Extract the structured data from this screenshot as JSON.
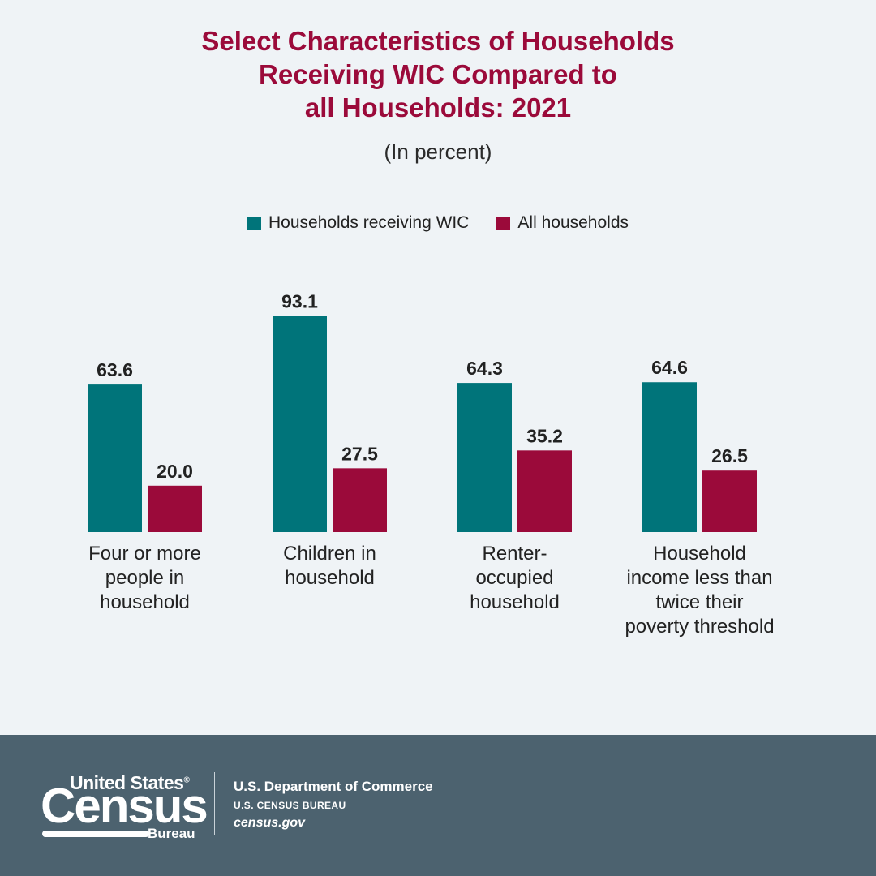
{
  "chart_data": {
    "type": "bar",
    "title_lines": [
      "Select Characteristics of Households",
      "Receiving WIC Compared to",
      "all Households: 2021"
    ],
    "subtitle": "(In percent)",
    "categories": [
      [
        "Four or more",
        "people in",
        "household"
      ],
      [
        "Children in",
        "household"
      ],
      [
        "Renter-",
        "occupied",
        "household"
      ],
      [
        "Household",
        "income less than",
        "twice their",
        "poverty threshold"
      ]
    ],
    "series": [
      {
        "name": "Households receiving WIC",
        "color": "#00747a",
        "values": [
          63.6,
          93.1,
          64.3,
          64.6
        ]
      },
      {
        "name": "All households",
        "color": "#9b0a3a",
        "values": [
          20.0,
          27.5,
          35.2,
          26.5
        ]
      }
    ],
    "ylim": [
      0,
      100
    ],
    "legend_position": "top-center",
    "grid": false
  },
  "footer": {
    "logo_top": "United States",
    "logo_reg": "®",
    "logo_main": "Census",
    "logo_bureau": "Bureau",
    "agency_line1": "U.S. Department of Commerce",
    "agency_line2": "U.S. CENSUS BUREAU",
    "agency_line3": "census.gov"
  }
}
